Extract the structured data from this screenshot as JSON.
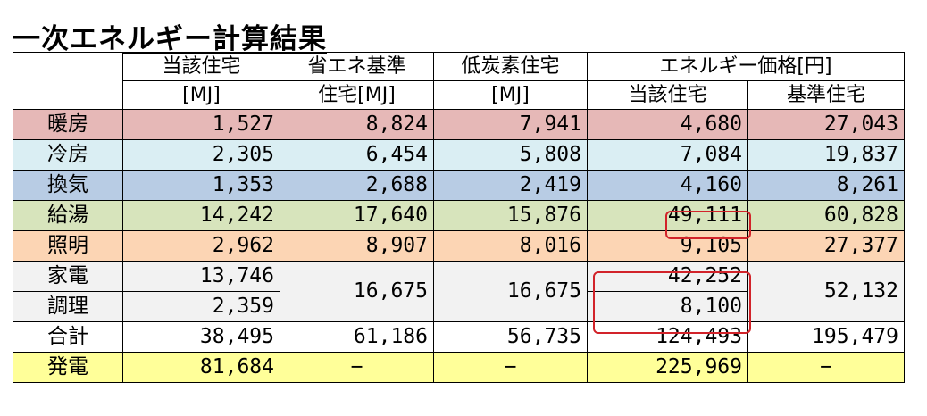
{
  "title": "一次エネルギー計算結果",
  "header": {
    "col1_line1": "当該住宅",
    "col1_line2": "[MJ]",
    "col2_line1": "省エネ基準",
    "col2_line2": "住宅[MJ]",
    "col3_line1": "低炭素住宅",
    "col3_line2": "[MJ]",
    "price_group": "エネルギー価格[円]",
    "price_col1": "当該住宅",
    "price_col2": "基準住宅"
  },
  "rows": [
    {
      "label": "暖房",
      "c1": "1,527",
      "c2": "8,824",
      "c3": "7,941",
      "p1": "4,680",
      "p2": "27,043",
      "bg": "#e6b8b7"
    },
    {
      "label": "冷房",
      "c1": "2,305",
      "c2": "6,454",
      "c3": "5,808",
      "p1": "7,084",
      "p2": "19,837",
      "bg": "#daeef3"
    },
    {
      "label": "換気",
      "c1": "1,353",
      "c2": "2,688",
      "c3": "2,419",
      "p1": "4,160",
      "p2": "8,261",
      "bg": "#b8cce4"
    },
    {
      "label": "給湯",
      "c1": "14,242",
      "c2": "17,640",
      "c3": "15,876",
      "p1": "49,111",
      "p2": "60,828",
      "bg": "#d7e4bc"
    },
    {
      "label": "照明",
      "c1": "2,962",
      "c2": "8,907",
      "c3": "8,016",
      "p1": "9,105",
      "p2": "27,377",
      "bg": "#fcd5b4"
    }
  ],
  "appliance": {
    "label": "家電",
    "c1": "13,746",
    "p1": "42,252"
  },
  "cooking": {
    "label": "調理",
    "c1": "2,359",
    "p1": "8,100"
  },
  "merged": {
    "c2": "16,675",
    "c3": "16,675",
    "p2": "52,132",
    "bg": "#f2f2f2"
  },
  "total": {
    "label": "合計",
    "c1": "38,495",
    "c2": "61,186",
    "c3": "56,735",
    "p1": "124,493",
    "p2": "195,479"
  },
  "generation": {
    "label": "発電",
    "c1": "81,684",
    "c2": "−",
    "c3": "−",
    "p1": "225,969",
    "p2": "−",
    "bg": "#ffff99"
  },
  "colors": {
    "highlight_border": "#d2232a"
  }
}
